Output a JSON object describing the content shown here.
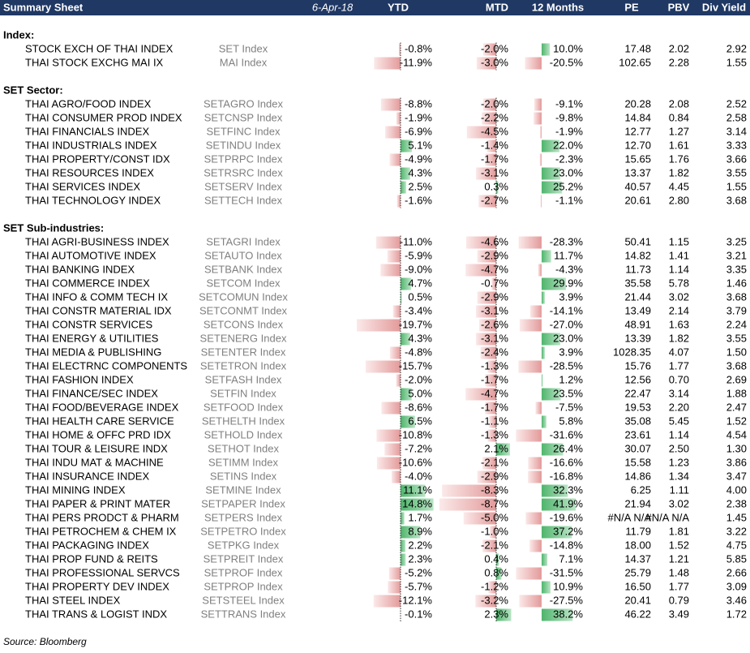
{
  "header": {
    "title": "Summary Sheet",
    "date": "6-Apr-18",
    "columns": [
      "YTD",
      "MTD",
      "12 Months",
      "PE",
      "PBV",
      "Div Yield"
    ]
  },
  "sections": [
    {
      "title": "Index:",
      "rows": [
        [
          "STOCK EXCH OF THAI INDEX",
          "SET Index",
          "-0.8%",
          "-2.0%",
          "10.0%",
          "17.48",
          "2.02",
          "2.92"
        ],
        [
          "THAI STOCK EXCHG MAI IX",
          "MAI Index",
          "-11.9%",
          "-3.0%",
          "-20.5%",
          "102.65",
          "2.28",
          "1.55"
        ]
      ]
    },
    {
      "title": "SET Sector:",
      "rows": [
        [
          "THAI AGRO/FOOD INDEX",
          "SETAGRO Index",
          "-8.8%",
          "-2.0%",
          "-9.1%",
          "20.28",
          "2.08",
          "2.52"
        ],
        [
          "THAI CONSUMER PROD INDEX",
          "SETCNSP Index",
          "-1.9%",
          "-2.2%",
          "-9.8%",
          "14.84",
          "0.84",
          "2.58"
        ],
        [
          "THAI FINANCIALS INDEX",
          "SETFINC Index",
          "-6.9%",
          "-4.5%",
          "-1.9%",
          "12.77",
          "1.27",
          "3.14"
        ],
        [
          "THAI INDUSTRIALS INDEX",
          "SETINDU Index",
          "5.1%",
          "-1.4%",
          "22.0%",
          "12.70",
          "1.61",
          "3.33"
        ],
        [
          "THAI PROPERTY/CONST IDX",
          "SETPRPC Index",
          "-4.9%",
          "-1.7%",
          "-2.3%",
          "15.65",
          "1.76",
          "3.66"
        ],
        [
          "THAI RESOURCES INDEX",
          "SETRSRC Index",
          "4.3%",
          "-3.1%",
          "23.0%",
          "13.37",
          "1.82",
          "3.55"
        ],
        [
          "THAI SERVICES INDEX",
          "SETSERV Index",
          "2.5%",
          "0.3%",
          "25.2%",
          "40.57",
          "4.45",
          "1.55"
        ],
        [
          "THAI TECHNOLOGY INDEX",
          "SETTECH Index",
          "-1.6%",
          "-2.7%",
          "-1.1%",
          "20.61",
          "2.80",
          "3.68"
        ]
      ]
    },
    {
      "title": "SET Sub-industries:",
      "rows": [
        [
          "THAI AGRI-BUSINESS INDEX",
          "SETAGRI Index",
          "-11.0%",
          "-4.6%",
          "-28.3%",
          "50.41",
          "1.15",
          "3.25"
        ],
        [
          "THAI AUTOMOTIVE INDEX",
          "SETAUTO Index",
          "-5.9%",
          "-2.9%",
          "11.7%",
          "14.82",
          "1.41",
          "3.21"
        ],
        [
          "THAI BANKING INDEX",
          "SETBANK Index",
          "-9.0%",
          "-4.7%",
          "-4.3%",
          "11.73",
          "1.14",
          "3.35"
        ],
        [
          "THAI COMMERCE INDEX",
          "SETCOM Index",
          "4.7%",
          "-0.7%",
          "29.9%",
          "35.58",
          "5.78",
          "1.46"
        ],
        [
          "THAI INFO & COMM TECH IX",
          "SETCOMUN Index",
          "0.5%",
          "-2.9%",
          "3.9%",
          "21.44",
          "3.02",
          "3.68"
        ],
        [
          "THAI CONSTR MATERIAL IDX",
          "SETCONMT Index",
          "-3.4%",
          "-3.1%",
          "-14.1%",
          "13.49",
          "2.14",
          "3.79"
        ],
        [
          "THAI CONSTR SERVICES",
          "SETCONS Index",
          "-19.7%",
          "-2.6%",
          "-27.0%",
          "48.91",
          "1.63",
          "2.24"
        ],
        [
          "THAI ENERGY & UTILITIES",
          "SETENERG Index",
          "4.3%",
          "-3.1%",
          "23.0%",
          "13.39",
          "1.82",
          "3.55"
        ],
        [
          "THAI MEDIA & PUBLISHING",
          "SETENTER Index",
          "-4.8%",
          "-2.4%",
          "3.9%",
          "1028.35",
          "4.07",
          "1.50"
        ],
        [
          "THAI ELECTRNC COMPONENTS",
          "SETETRON Index",
          "-15.7%",
          "-1.3%",
          "-28.5%",
          "15.76",
          "1.77",
          "3.68"
        ],
        [
          "THAI FASHION INDEX",
          "SETFASH Index",
          "-2.0%",
          "-1.7%",
          "1.2%",
          "12.56",
          "0.70",
          "2.69"
        ],
        [
          "THAI FINANCE/SEC INDEX",
          "SETFIN Index",
          "5.0%",
          "-4.7%",
          "23.5%",
          "22.47",
          "3.14",
          "1.88"
        ],
        [
          "THAI FOOD/BEVERAGE INDEX",
          "SETFOOD Index",
          "-8.6%",
          "-1.7%",
          "-7.5%",
          "19.53",
          "2.20",
          "2.47"
        ],
        [
          "THAI HEALTH CARE SERVICE",
          "SETHELTH Index",
          "6.5%",
          "-1.1%",
          "5.8%",
          "35.08",
          "5.45",
          "1.52"
        ],
        [
          "THAI HOME & OFFC PRD IDX",
          "SETHOLD Index",
          "-10.8%",
          "-1.3%",
          "-31.6%",
          "23.61",
          "1.14",
          "4.54"
        ],
        [
          "THAI TOUR & LEISURE INDX",
          "SETHOT Index",
          "-7.2%",
          "2.1%",
          "26.4%",
          "30.07",
          "2.50",
          "1.30"
        ],
        [
          "THAI INDU MAT & MACHINE",
          "SETIMM Index",
          "-10.6%",
          "-2.1%",
          "-16.6%",
          "15.58",
          "1.23",
          "3.86"
        ],
        [
          "THAI INSURANCE INDEX",
          "SETINS Index",
          "-4.0%",
          "-2.9%",
          "-16.8%",
          "14.86",
          "1.34",
          "3.47"
        ],
        [
          "THAI MINING INDEX",
          "SETMINE Index",
          "11.1%",
          "-8.3%",
          "32.3%",
          "6.25",
          "1.11",
          "4.00"
        ],
        [
          "THAI PAPER & PRINT MATER",
          "SETPAPER Index",
          "14.8%",
          "-8.7%",
          "41.9%",
          "21.94",
          "3.02",
          "2.38"
        ],
        [
          "THAI PERS PRODCT & PHARM",
          "SETPERS Index",
          "1.7%",
          "-5.0%",
          "-19.6%",
          "#N/A N/A",
          "#N/A N/A",
          "1.45"
        ],
        [
          "THAI PETROCHEM & CHEM IX",
          "SETPETRO Index",
          "8.9%",
          "-1.0%",
          "37.2%",
          "11.79",
          "1.81",
          "3.22"
        ],
        [
          "THAI PACKAGING INDEX",
          "SETPKG Index",
          "2.2%",
          "-2.1%",
          "-14.8%",
          "18.00",
          "1.52",
          "4.75"
        ],
        [
          "THAI PROP FUND & REITS",
          "SETPREIT Index",
          "2.3%",
          "0.4%",
          "7.1%",
          "14.37",
          "1.21",
          "5.85"
        ],
        [
          "THAI PROFESSIONAL SERVCS",
          "SETPROF Index",
          "-5.2%",
          "0.8%",
          "-31.5%",
          "25.79",
          "1.48",
          "2.66"
        ],
        [
          "THAI PROPERTY DEV INDEX",
          "SETPROP Index",
          "-5.7%",
          "-1.2%",
          "10.9%",
          "16.50",
          "1.77",
          "3.09"
        ],
        [
          "THAI STEEL INDEX",
          "SETSTEEL Index",
          "-12.1%",
          "-3.2%",
          "-27.5%",
          "20.41",
          "0.79",
          "3.46"
        ],
        [
          "THAI TRANS & LOGIST INDX",
          "SETTRANS Index",
          "-0.1%",
          "2.3%",
          "38.2%",
          "46.22",
          "3.49",
          "1.72"
        ]
      ]
    }
  ],
  "source": "Source: Bloomberg"
}
